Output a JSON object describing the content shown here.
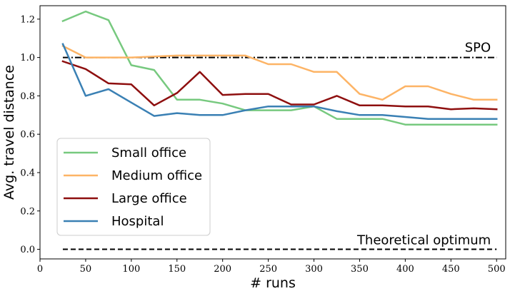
{
  "chart_data": {
    "type": "line",
    "title": "",
    "xlabel": "# runs",
    "ylabel": "Avg. travel distance",
    "xlim": [
      0,
      510
    ],
    "ylim": [
      -0.05,
      1.27
    ],
    "xticks": [
      0,
      50,
      100,
      150,
      200,
      250,
      300,
      350,
      400,
      450,
      500
    ],
    "yticks": [
      0.0,
      0.2,
      0.4,
      0.6,
      0.8,
      1.0,
      1.2
    ],
    "xtick_labels": [
      "0",
      "50",
      "100",
      "150",
      "200",
      "250",
      "300",
      "350",
      "400",
      "450",
      "500"
    ],
    "ytick_labels": [
      "0.0",
      "0.2",
      "0.4",
      "0.6",
      "0.8",
      "1.0",
      "1.2"
    ],
    "grid": false,
    "legend_position": "lower-left",
    "x": [
      25,
      50,
      75,
      100,
      125,
      150,
      175,
      200,
      225,
      250,
      275,
      300,
      325,
      350,
      375,
      400,
      425,
      450,
      475,
      500
    ],
    "series": [
      {
        "name": "Small office",
        "color": "#77c97f",
        "values": [
          1.19,
          1.24,
          1.195,
          0.96,
          0.935,
          0.78,
          0.78,
          0.76,
          0.725,
          0.725,
          0.725,
          0.745,
          0.68,
          0.68,
          0.68,
          0.65,
          0.65,
          0.65,
          0.65,
          0.65
        ]
      },
      {
        "name": "Medium office",
        "color": "#fdb466",
        "values": [
          1.06,
          1.0,
          1.0,
          1.0,
          1.005,
          1.01,
          1.01,
          1.01,
          1.01,
          0.965,
          0.965,
          0.925,
          0.925,
          0.81,
          0.78,
          0.85,
          0.85,
          0.81,
          0.78,
          0.78
        ]
      },
      {
        "name": "Large office",
        "color": "#8e0f0f",
        "values": [
          0.98,
          0.94,
          0.865,
          0.86,
          0.75,
          0.815,
          0.925,
          0.805,
          0.81,
          0.81,
          0.755,
          0.755,
          0.8,
          0.75,
          0.75,
          0.745,
          0.745,
          0.73,
          0.735,
          0.73
        ]
      },
      {
        "name": "Hospital",
        "color": "#3a80b4",
        "values": [
          1.07,
          0.8,
          0.835,
          0.765,
          0.695,
          0.71,
          0.7,
          0.7,
          0.725,
          0.745,
          0.745,
          0.745,
          0.72,
          0.7,
          0.7,
          0.69,
          0.68,
          0.68,
          0.68,
          0.68
        ]
      }
    ],
    "reference_lines": [
      {
        "name": "SPO",
        "value": 1.0,
        "style": "dashdot",
        "color": "#000000"
      },
      {
        "name": "Theoretical optimum",
        "value": 0.0,
        "style": "dashed",
        "color": "#000000"
      }
    ]
  }
}
